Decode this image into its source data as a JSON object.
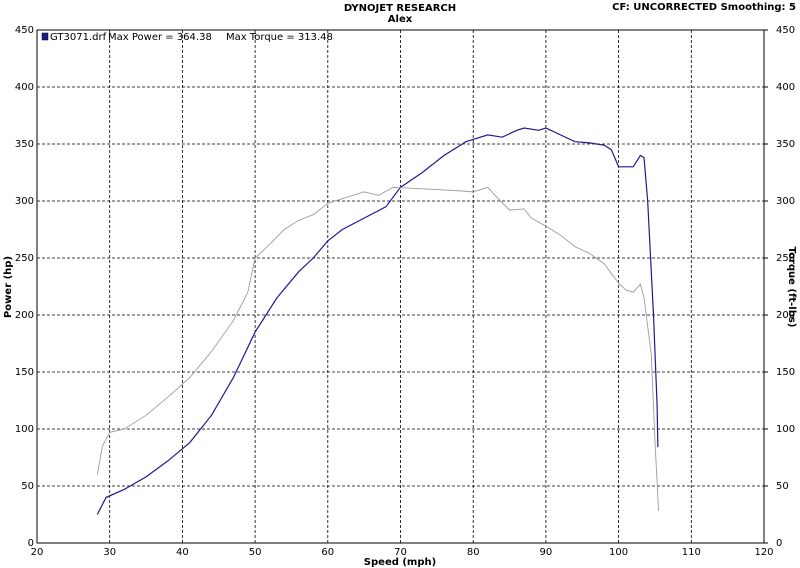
{
  "chart_data": {
    "type": "line",
    "title": "DYNOJET RESEARCH",
    "subtitle": "Alex",
    "corner_note": "CF: UNCORRECTED  Smoothing: 5",
    "legend_file": "GT3071.drf",
    "legend_items": [
      "Max Power = 364.38",
      "Max Torque = 313.48"
    ],
    "x_label": "Speed (mph)",
    "y_label": "Power (hp)",
    "y2_label": "Torque (ft-lbs)",
    "xlim": [
      20,
      120
    ],
    "xticks": [
      20,
      30,
      40,
      50,
      60,
      70,
      80,
      90,
      100,
      110,
      120
    ],
    "ylim": [
      0,
      450
    ],
    "yticks": [
      0,
      50,
      100,
      150,
      200,
      250,
      300,
      350,
      400,
      450
    ],
    "y2lim": [
      0,
      450
    ],
    "y2ticks": [
      0,
      50,
      100,
      150,
      200,
      250,
      300,
      350,
      400,
      450
    ],
    "grid": true,
    "series": [
      {
        "color": "#1c1c8f",
        "x": [
          28.3,
          29.5,
          32,
          35,
          38,
          41,
          44,
          47,
          50,
          53,
          56,
          58,
          60,
          62,
          65,
          68,
          70,
          73,
          76,
          79,
          82,
          84,
          86,
          87,
          89,
          90,
          92,
          94,
          96,
          98,
          99,
          100,
          101,
          102,
          103,
          103.5,
          104,
          104.8,
          105.3,
          105.4
        ],
        "values": [
          25,
          40,
          47,
          58,
          72,
          88,
          112,
          145,
          185,
          215,
          238,
          250,
          265,
          275,
          285,
          295,
          312,
          325,
          340,
          352,
          358,
          356,
          362,
          364,
          362,
          364,
          358,
          352,
          351,
          349,
          345,
          330,
          330,
          330,
          340,
          338,
          300,
          200,
          120,
          84
        ]
      },
      {
        "color": "#9a9ab5",
        "axis": "y2",
        "x": [
          28.3,
          29,
          30,
          32,
          35,
          38,
          41,
          44,
          47,
          49,
          50,
          52,
          54,
          56,
          58,
          60,
          62,
          65,
          67,
          69,
          72,
          75,
          78,
          80,
          82,
          83,
          85,
          87,
          88,
          90,
          92,
          94,
          96,
          98,
          100,
          101,
          102,
          103,
          103.5,
          104.5,
          105,
          105.5
        ],
        "values": [
          60,
          85,
          97,
          100,
          112,
          128,
          145,
          168,
          195,
          220,
          250,
          262,
          275,
          283,
          288,
          298,
          302,
          308,
          305,
          312,
          311,
          310,
          309,
          308,
          312,
          305,
          292,
          293,
          285,
          278,
          270,
          260,
          254,
          245,
          228,
          222,
          220,
          227,
          215,
          165,
          90,
          28
        ]
      }
    ]
  }
}
